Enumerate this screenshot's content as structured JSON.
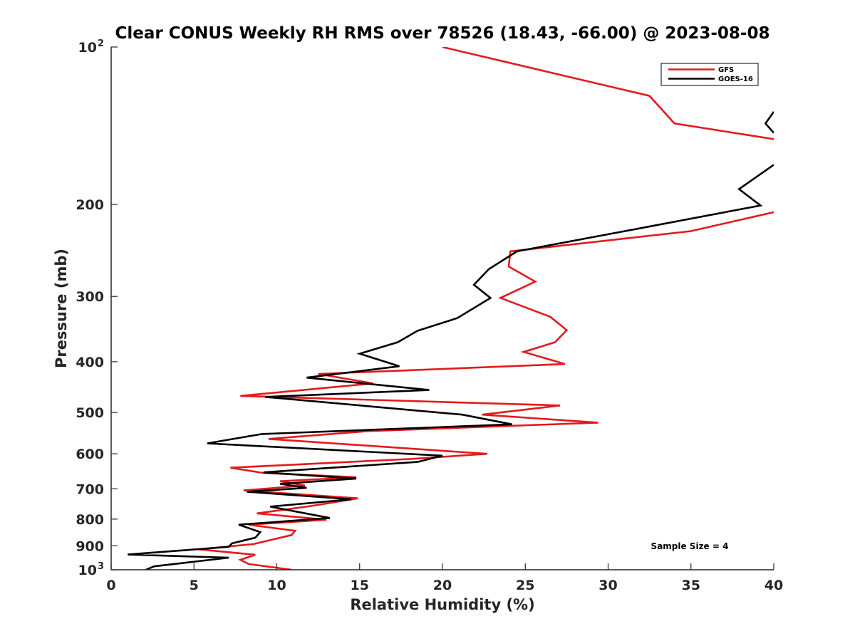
{
  "chart_data": {
    "type": "line",
    "title": "Clear CONUS Weekly RH RMS over 78526 (18.43, -66.00) @ 2023-08-08",
    "xlabel": "Relative Humidity (%)",
    "ylabel": "Pressure (mb)",
    "xlim": [
      0,
      40
    ],
    "ylim": [
      100,
      1000
    ],
    "y_scale": "log",
    "y_reversed": true,
    "x_ticks": [
      {
        "value": 0,
        "label": "0"
      },
      {
        "value": 5,
        "label": "5"
      },
      {
        "value": 10,
        "label": "10"
      },
      {
        "value": 15,
        "label": "15"
      },
      {
        "value": 20,
        "label": "20"
      },
      {
        "value": 25,
        "label": "25"
      },
      {
        "value": 30,
        "label": "30"
      },
      {
        "value": 35,
        "label": "35"
      },
      {
        "value": 40,
        "label": "40"
      }
    ],
    "y_ticks": [
      {
        "value": 100,
        "label": "10",
        "exp": "2"
      },
      {
        "value": 200,
        "label": "200",
        "exp": ""
      },
      {
        "value": 300,
        "label": "300",
        "exp": ""
      },
      {
        "value": 400,
        "label": "400",
        "exp": ""
      },
      {
        "value": 500,
        "label": "500",
        "exp": ""
      },
      {
        "value": 600,
        "label": "600",
        "exp": ""
      },
      {
        "value": 700,
        "label": "700",
        "exp": ""
      },
      {
        "value": 800,
        "label": "800",
        "exp": ""
      },
      {
        "value": 900,
        "label": "900",
        "exp": ""
      },
      {
        "value": 1000,
        "label": "10",
        "exp": "3"
      }
    ],
    "grid": false,
    "legend_position": "top-right",
    "annotation": "Sample Size = 4",
    "series": [
      {
        "name": "GFS",
        "color": "#e41a1c",
        "points": [
          [
            20.0,
            100
          ],
          [
            32.5,
            124
          ],
          [
            34.0,
            140
          ],
          [
            40.0,
            150
          ]
        ],
        "segments_extra": [
          [
            [
              40.0,
              207
            ],
            [
              35.0,
              225
            ],
            [
              24.1,
              246
            ],
            [
              24.0,
              263
            ],
            [
              25.6,
              281
            ],
            [
              23.5,
              302
            ],
            [
              26.5,
              328
            ],
            [
              27.5,
              348
            ],
            [
              26.8,
              367
            ],
            [
              24.9,
              383
            ],
            [
              27.4,
              404
            ],
            [
              12.5,
              422
            ],
            [
              15.8,
              440
            ],
            [
              7.8,
              465
            ],
            [
              27.1,
              485
            ],
            [
              22.4,
              505
            ],
            [
              29.4,
              523
            ],
            [
              15.5,
              543
            ],
            [
              9.5,
              562
            ],
            [
              22.7,
              600
            ],
            [
              18.0,
              614
            ],
            [
              7.2,
              638
            ],
            [
              9.2,
              653
            ],
            [
              14.8,
              665
            ],
            [
              10.2,
              677
            ],
            [
              11.7,
              690
            ],
            [
              8.0,
              705
            ],
            [
              14.9,
              730
            ],
            [
              12.1,
              755
            ],
            [
              8.8,
              780
            ],
            [
              13.0,
              802
            ],
            [
              8.3,
              820
            ],
            [
              11.1,
              842
            ],
            [
              10.9,
              858
            ],
            [
              8.6,
              893
            ],
            [
              5.3,
              914
            ],
            [
              8.7,
              936
            ],
            [
              7.8,
              957
            ],
            [
              8.3,
              975
            ],
            [
              10.9,
              1000
            ]
          ]
        ]
      },
      {
        "name": "GOES-16",
        "color": "#000000",
        "points": [
          [
            40.0,
            133
          ],
          [
            39.5,
            140
          ],
          [
            40.0,
            146
          ]
        ],
        "segments_extra": [
          [
            [
              40.0,
              168
            ],
            [
              37.9,
              187
            ],
            [
              39.2,
              201
            ],
            [
              32.0,
              222
            ],
            [
              24.5,
              246
            ],
            [
              22.8,
              266
            ],
            [
              21.9,
              285
            ],
            [
              22.9,
              302
            ],
            [
              20.9,
              330
            ],
            [
              18.5,
              349
            ],
            [
              17.3,
              367
            ],
            [
              15.0,
              386
            ],
            [
              17.4,
              408
            ],
            [
              11.8,
              429
            ],
            [
              19.2,
              453
            ],
            [
              9.3,
              467
            ],
            [
              21.2,
              505
            ],
            [
              24.2,
              527
            ],
            [
              9.1,
              550
            ],
            [
              5.8,
              573
            ],
            [
              20.0,
              605
            ],
            [
              18.5,
              622
            ],
            [
              9.2,
              651
            ],
            [
              14.8,
              669
            ],
            [
              10.2,
              685
            ],
            [
              11.8,
              697
            ],
            [
              8.2,
              709
            ],
            [
              14.5,
              733
            ],
            [
              9.6,
              757
            ],
            [
              13.2,
              796
            ],
            [
              7.7,
              820
            ],
            [
              9.0,
              847
            ],
            [
              8.7,
              868
            ],
            [
              7.3,
              890
            ],
            [
              7.1,
              904
            ],
            [
              1.0,
              935
            ],
            [
              7.1,
              948
            ],
            [
              2.6,
              985
            ],
            [
              2.1,
              1000
            ]
          ]
        ]
      }
    ]
  }
}
